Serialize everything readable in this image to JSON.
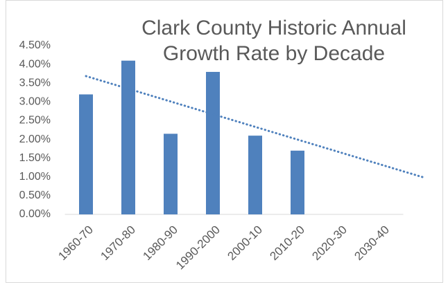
{
  "chart_data": {
    "type": "bar",
    "title": "Clark County Historic Annual Growth Rate by Decade",
    "categories": [
      "1960-70",
      "1970-80",
      "1980-90",
      "1990-2000",
      "2000-10",
      "2010-20",
      "2020-30",
      "2030-40"
    ],
    "values": [
      3.2,
      4.1,
      2.15,
      3.8,
      2.1,
      1.7,
      null,
      null
    ],
    "color": "#4f81bd",
    "ylim": [
      0,
      4.5
    ],
    "yticks": [
      {
        "value": 0,
        "label": "0.00%"
      },
      {
        "value": 0.5,
        "label": "0.50%"
      },
      {
        "value": 1,
        "label": "1.00%"
      },
      {
        "value": 1.5,
        "label": "1.50%"
      },
      {
        "value": 2,
        "label": "2.00%"
      },
      {
        "value": 2.5,
        "label": "2.50%"
      },
      {
        "value": 3,
        "label": "3.00%"
      },
      {
        "value": 3.5,
        "label": "3.50%"
      },
      {
        "value": 4,
        "label": "4.00%"
      },
      {
        "value": 4.5,
        "label": "4.50%"
      }
    ],
    "grid": false,
    "trendline": {
      "type": "linear",
      "forecast_forward": 3,
      "style": "dotted"
    }
  }
}
